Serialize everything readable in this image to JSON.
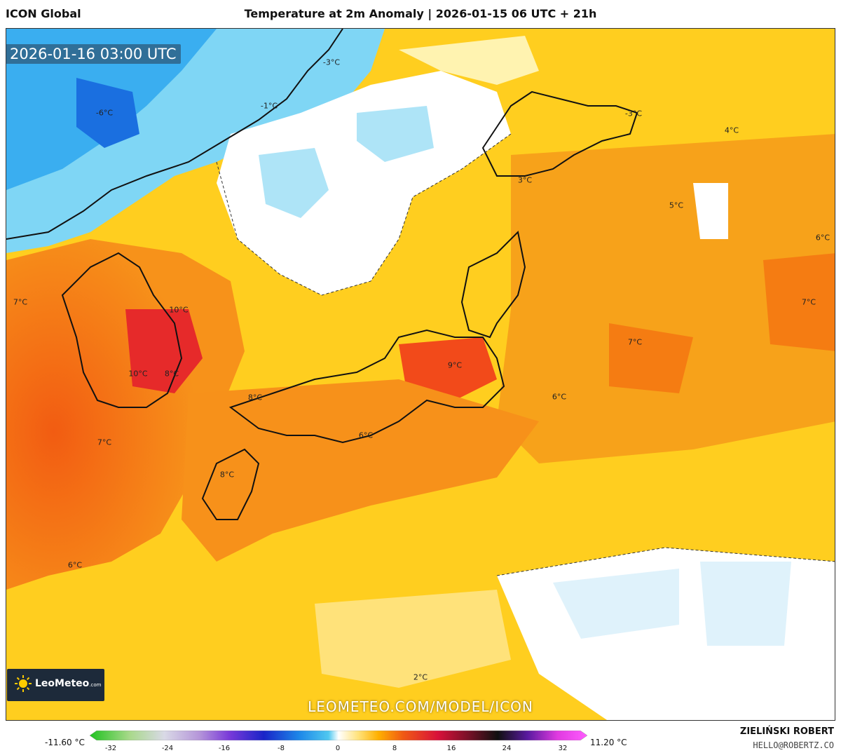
{
  "header": {
    "model_name": "ICON Global",
    "title": "Temperature at 2m Anomaly | 2026-01-15 06 UTC + 21h"
  },
  "valid_time": "2026-01-16 03:00 UTC",
  "watermark": "LEOMETEO.COM/MODEL/ICON",
  "logo": {
    "name": "LeoMeteo",
    "domain": ".com"
  },
  "legend": {
    "min_label": "-11.60 °C",
    "max_label": "11.20 °C",
    "ticks": [
      "-32",
      "-24",
      "-16",
      "-8",
      "0",
      "8",
      "16",
      "24",
      "32"
    ],
    "colors": [
      "#1fc21f",
      "#a8d98a",
      "#d9d9e6",
      "#b596d9",
      "#7a3ad9",
      "#1a24c8",
      "#1c86e8",
      "#4fc8f0",
      "#ffffff",
      "#ffe27a",
      "#ffb000",
      "#f05a14",
      "#d8103a",
      "#7a1028",
      "#101010",
      "#5a1aa0",
      "#e03ae0",
      "#ff5cff"
    ]
  },
  "credits": {
    "author": "ZIELIŃSKI ROBERT",
    "email": "HELLO@ROBERTZ.CO"
  },
  "map_labels": [
    {
      "text": "-6°C"
    },
    {
      "text": "-1°C"
    },
    {
      "text": "-3°C"
    },
    {
      "text": "-3°C"
    },
    {
      "text": "4°C"
    },
    {
      "text": "3°C"
    },
    {
      "text": "5°C"
    },
    {
      "text": "6°C"
    },
    {
      "text": "7°C"
    },
    {
      "text": "7°C"
    },
    {
      "text": "7°C"
    },
    {
      "text": "10°C"
    },
    {
      "text": "10°C"
    },
    {
      "text": "8°C"
    },
    {
      "text": "9°C"
    },
    {
      "text": "8°C"
    },
    {
      "text": "6°C"
    },
    {
      "text": "6°C"
    },
    {
      "text": "7°C"
    },
    {
      "text": "8°C"
    },
    {
      "text": "6°C"
    },
    {
      "text": "2°C"
    }
  ]
}
